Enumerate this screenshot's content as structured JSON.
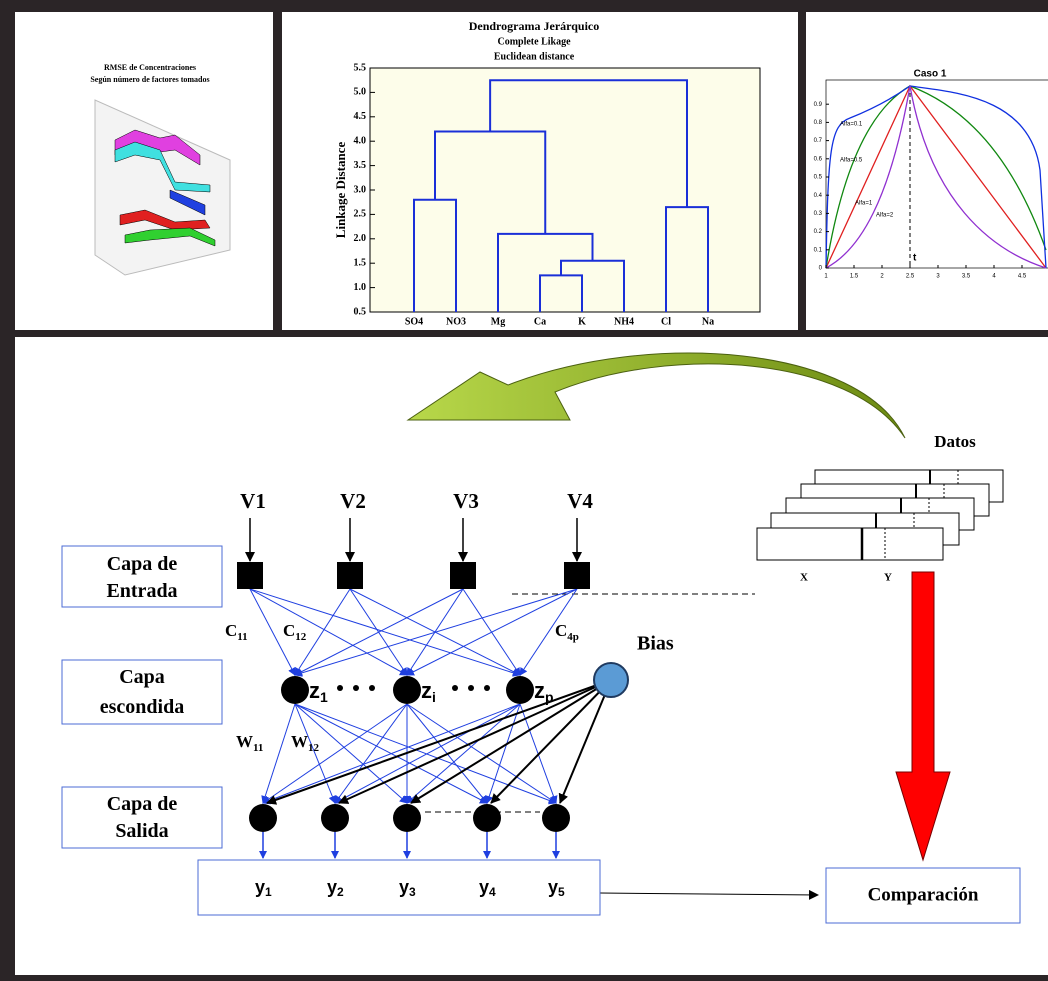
{
  "panels": {
    "rmse_chart": {
      "title": "RMSE de Concentraciones",
      "subtitle": "Según número de factores tomados"
    },
    "dendrogram": {
      "title": "Dendrograma Jerárquico",
      "linkage": "Complete Likage",
      "distance": "Euclidean distance",
      "y_label": "Linkage Distance",
      "ylim": [
        0.5,
        5.5
      ],
      "yticks": [
        0.5,
        {
          "value": 1,
          "label": "1.0"
        },
        1.5,
        {
          "value": 2,
          "label": "2.0"
        },
        2.5,
        {
          "value": 3,
          "label": "3.0"
        },
        3.5,
        {
          "value": 4,
          "label": "4.0"
        },
        4.5,
        {
          "value": 5,
          "label": "5.0"
        },
        5.5
      ],
      "tree": {
        "height": 5.25,
        "children": [
          {
            "height": 4.2,
            "children": [
              {
                "height": 2.8,
                "children": [
                  {
                    "label": "SO4"
                  },
                  {
                    "label": "NO3"
                  }
                ]
              },
              {
                "height": 2.1,
                "children": [
                  {
                    "label": "Mg"
                  },
                  {
                    "height": 1.55,
                    "children": [
                      {
                        "height": 1.25,
                        "children": [
                          {
                            "label": "Ca"
                          },
                          {
                            "label": "K"
                          }
                        ]
                      },
                      {
                        "label": "NH4"
                      }
                    ]
                  }
                ]
              }
            ]
          },
          {
            "height": 2.65,
            "children": [
              {
                "label": "Cl"
              },
              {
                "label": "Na"
              }
            ]
          }
        ]
      }
    },
    "caso": {
      "title": "Caso 1",
      "curve_labels": [
        "Alfa=0.1",
        "Alfa=0.5",
        "Alfa=1",
        "Alfa=2"
      ],
      "marker": "t",
      "xlim": [
        1,
        5
      ],
      "ylim": [
        0,
        1
      ],
      "xticks": [
        1,
        1.5,
        2,
        2.5,
        3,
        3.5,
        4,
        4.5
      ],
      "yticks": [
        0,
        0.1,
        0.2,
        0.3,
        0.4,
        0.5,
        0.6,
        0.7,
        0.8,
        0.9
      ]
    }
  },
  "network": {
    "inputs": [
      "V1",
      "V2",
      "V3",
      "V4"
    ],
    "layers": [
      [
        "Capa de",
        "Entrada"
      ],
      [
        "Capa",
        "escondida"
      ],
      [
        "Capa de",
        "Salida"
      ]
    ],
    "hidden": [
      {
        "main": "z",
        "sub": "1"
      },
      {
        "main": "z",
        "sub": "i"
      },
      {
        "main": "z",
        "sub": "p"
      }
    ],
    "bias": "Bias",
    "input_weights": [
      {
        "main": "C",
        "sub": "11"
      },
      {
        "main": "C",
        "sub": "12"
      },
      {
        "main": "C",
        "sub": "4p"
      }
    ],
    "hidden_weights": [
      {
        "main": "W",
        "sub": "11"
      },
      {
        "main": "W",
        "sub": "12"
      }
    ],
    "outputs": [
      {
        "main": "y",
        "sub": "1"
      },
      {
        "main": "y",
        "sub": "2"
      },
      {
        "main": "y",
        "sub": "3"
      },
      {
        "main": "y",
        "sub": "4"
      },
      {
        "main": "y",
        "sub": "5"
      }
    ]
  },
  "data_block": {
    "title": "Datos",
    "columns": [
      "X",
      "Y"
    ]
  },
  "comparison": "Comparación"
}
